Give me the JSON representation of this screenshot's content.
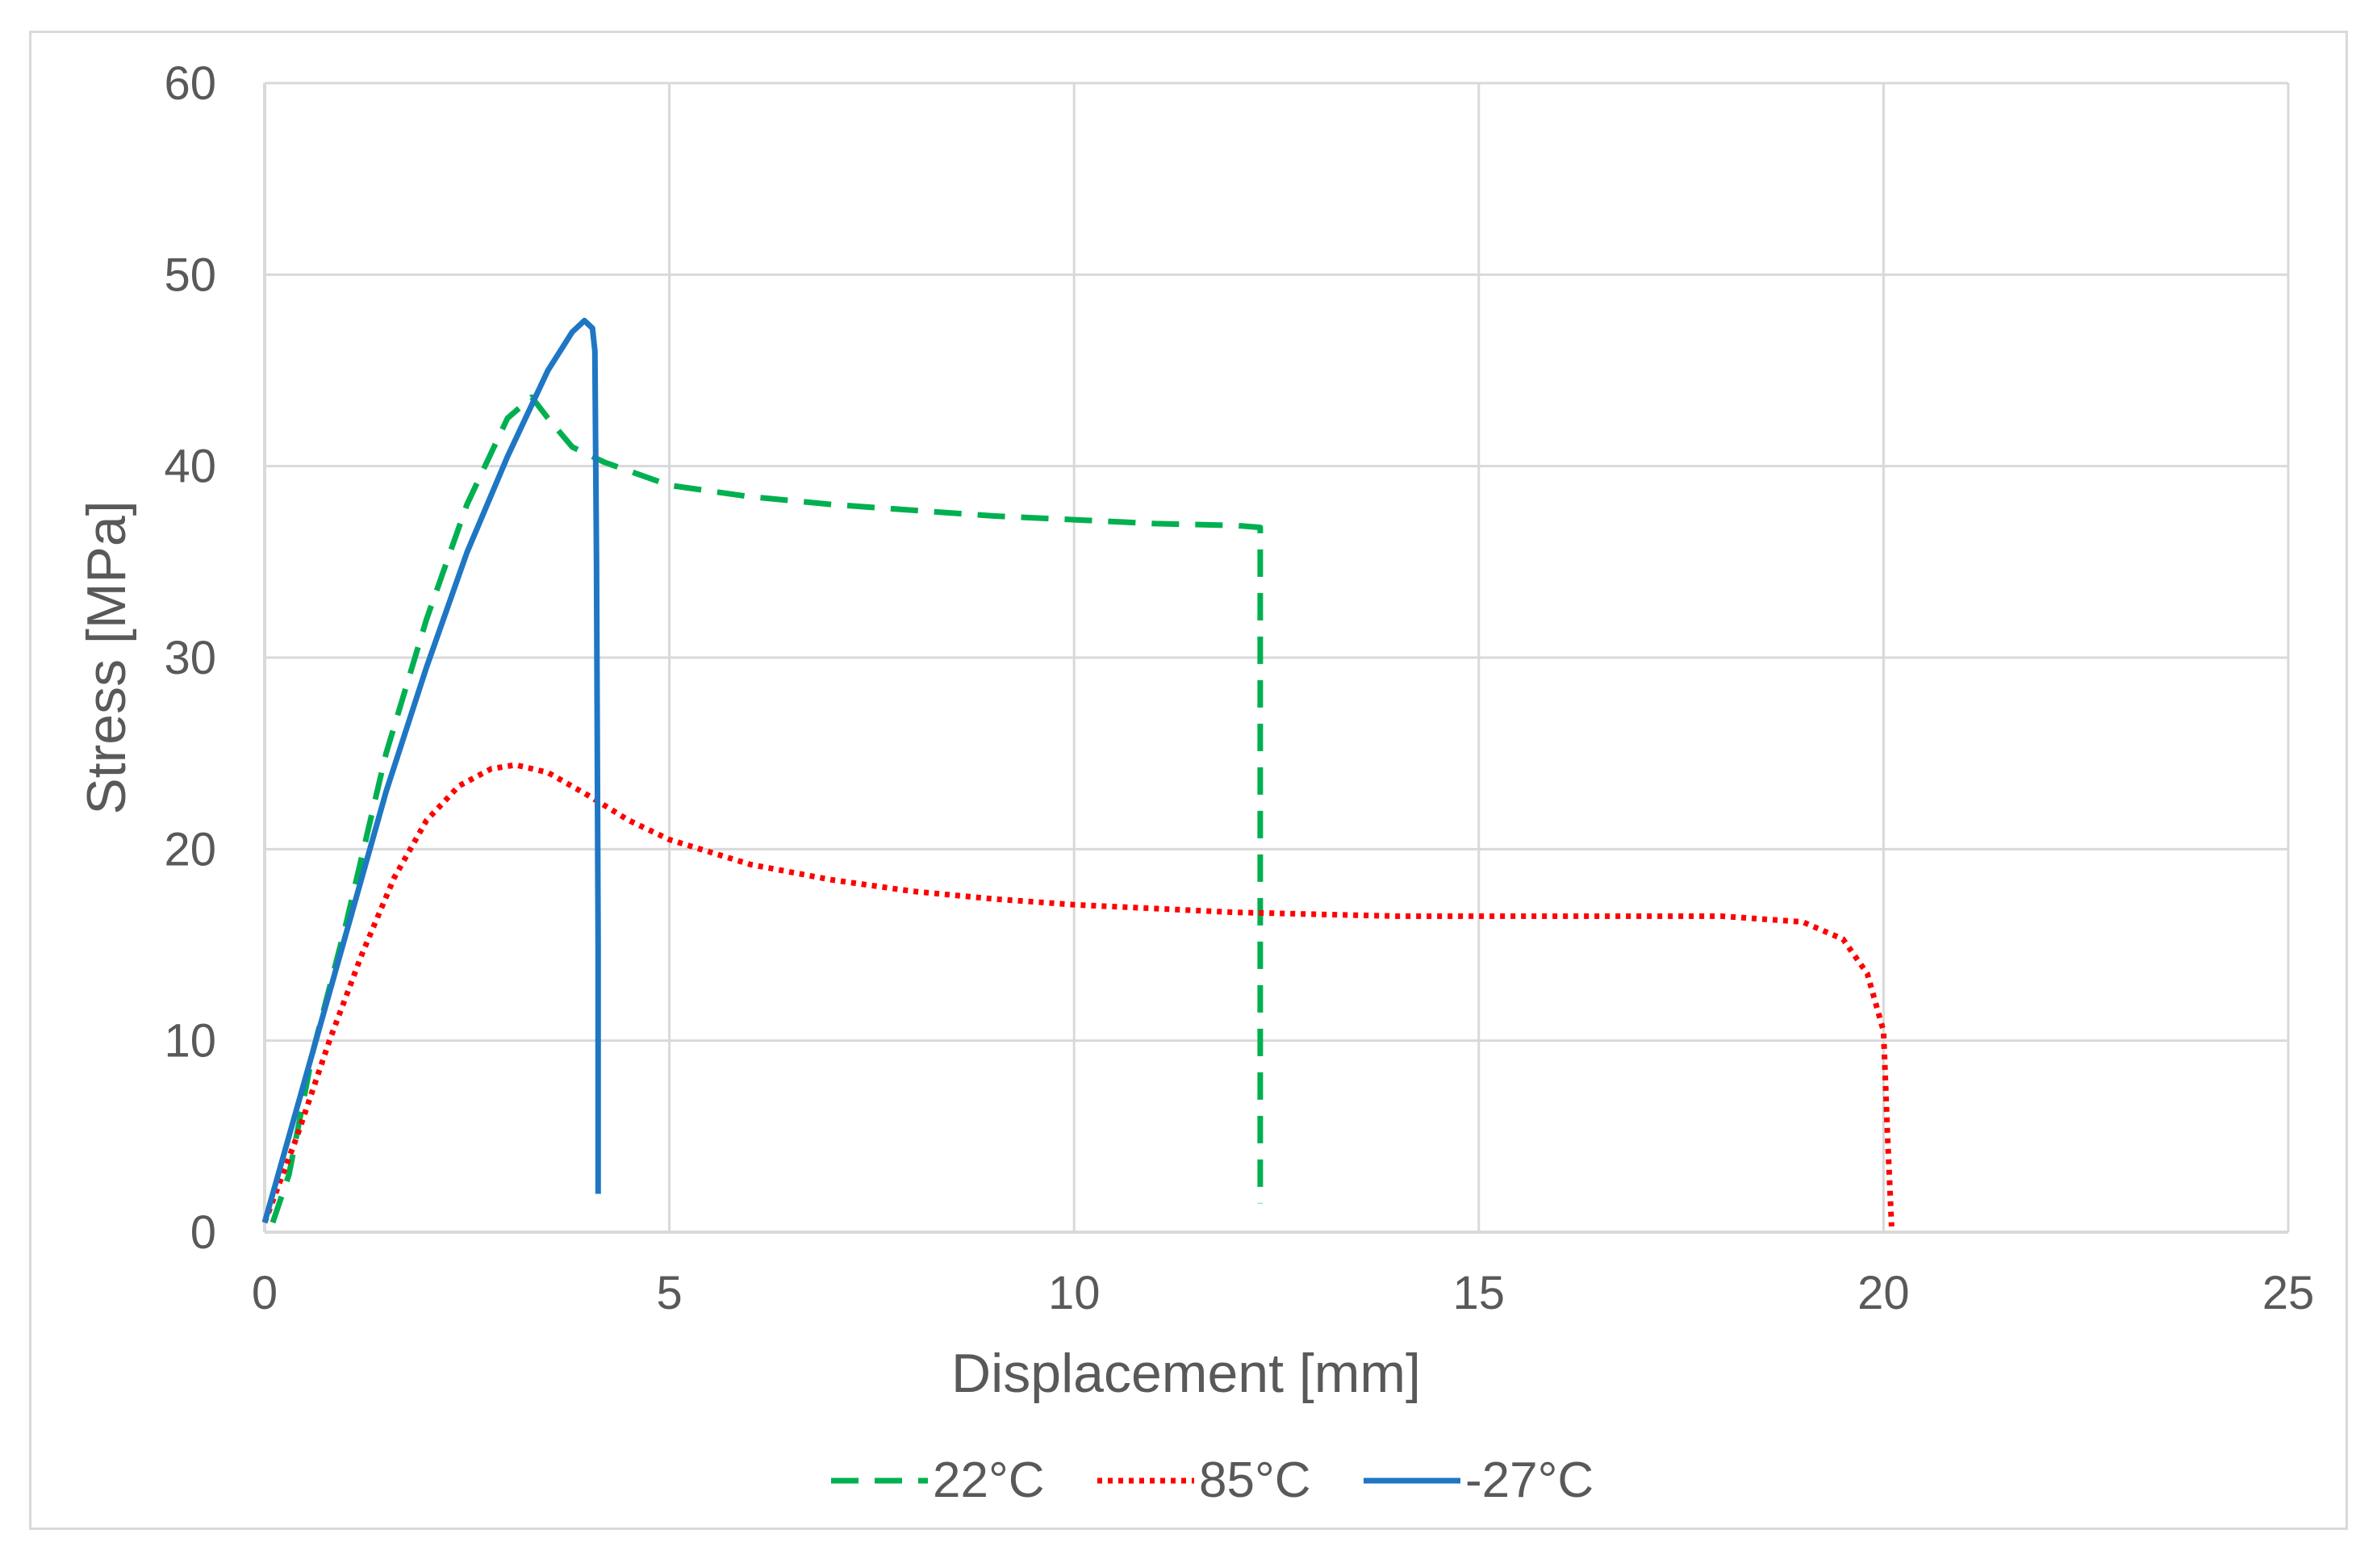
{
  "chart_data": {
    "type": "line",
    "title": "",
    "xlabel": "Displacement [mm]",
    "ylabel": "Stress [MPa]",
    "xlim": [
      0,
      25
    ],
    "ylim": [
      0,
      60
    ],
    "x_ticks": [
      0,
      5,
      10,
      15,
      20,
      25
    ],
    "y_ticks": [
      0,
      10,
      20,
      30,
      40,
      50,
      60
    ],
    "grid": true,
    "legend_position": "bottom",
    "series": [
      {
        "name": "22°C",
        "color": "#00b050",
        "style": "dashed",
        "x": [
          0.1,
          0.3,
          0.6,
          1.0,
          1.5,
          2.0,
          2.5,
          3.0,
          3.3,
          3.5,
          3.8,
          4.2,
          5.0,
          6.0,
          7.0,
          8.0,
          9.0,
          10.0,
          11.0,
          12.0,
          12.3,
          12.3,
          12.3
        ],
        "y": [
          0.5,
          3.0,
          9.5,
          16.0,
          25.0,
          32.0,
          38.0,
          42.5,
          43.6,
          42.5,
          41.0,
          40.2,
          39.0,
          38.4,
          38.0,
          37.7,
          37.4,
          37.2,
          37.0,
          36.9,
          36.8,
          20.0,
          1.5
        ]
      },
      {
        "name": "85°C",
        "color": "#ff0000",
        "style": "dotted",
        "x": [
          0.0,
          0.4,
          0.8,
          1.2,
          1.6,
          2.0,
          2.4,
          2.8,
          3.1,
          3.5,
          4.0,
          4.5,
          5.0,
          6.0,
          7.0,
          8.0,
          9.0,
          10.0,
          12.0,
          14.0,
          16.0,
          18.0,
          19.0,
          19.5,
          19.8,
          20.0,
          20.05,
          20.1
        ],
        "y": [
          0.5,
          5.0,
          10.0,
          14.5,
          18.5,
          21.5,
          23.3,
          24.2,
          24.4,
          24.0,
          22.8,
          21.5,
          20.5,
          19.2,
          18.4,
          17.8,
          17.4,
          17.1,
          16.7,
          16.5,
          16.5,
          16.5,
          16.2,
          15.3,
          13.5,
          10.5,
          5.0,
          0.3
        ]
      },
      {
        "name": "-27°C",
        "color": "#1f77c4",
        "style": "solid",
        "x": [
          0.0,
          0.5,
          1.0,
          1.5,
          2.0,
          2.5,
          3.0,
          3.5,
          3.8,
          3.95,
          4.05,
          4.08,
          4.1,
          4.12,
          4.12
        ],
        "y": [
          0.5,
          8.0,
          15.5,
          23.0,
          29.5,
          35.5,
          40.5,
          45.0,
          47.0,
          47.6,
          47.2,
          46.0,
          35.0,
          15.0,
          2.0
        ]
      }
    ]
  }
}
